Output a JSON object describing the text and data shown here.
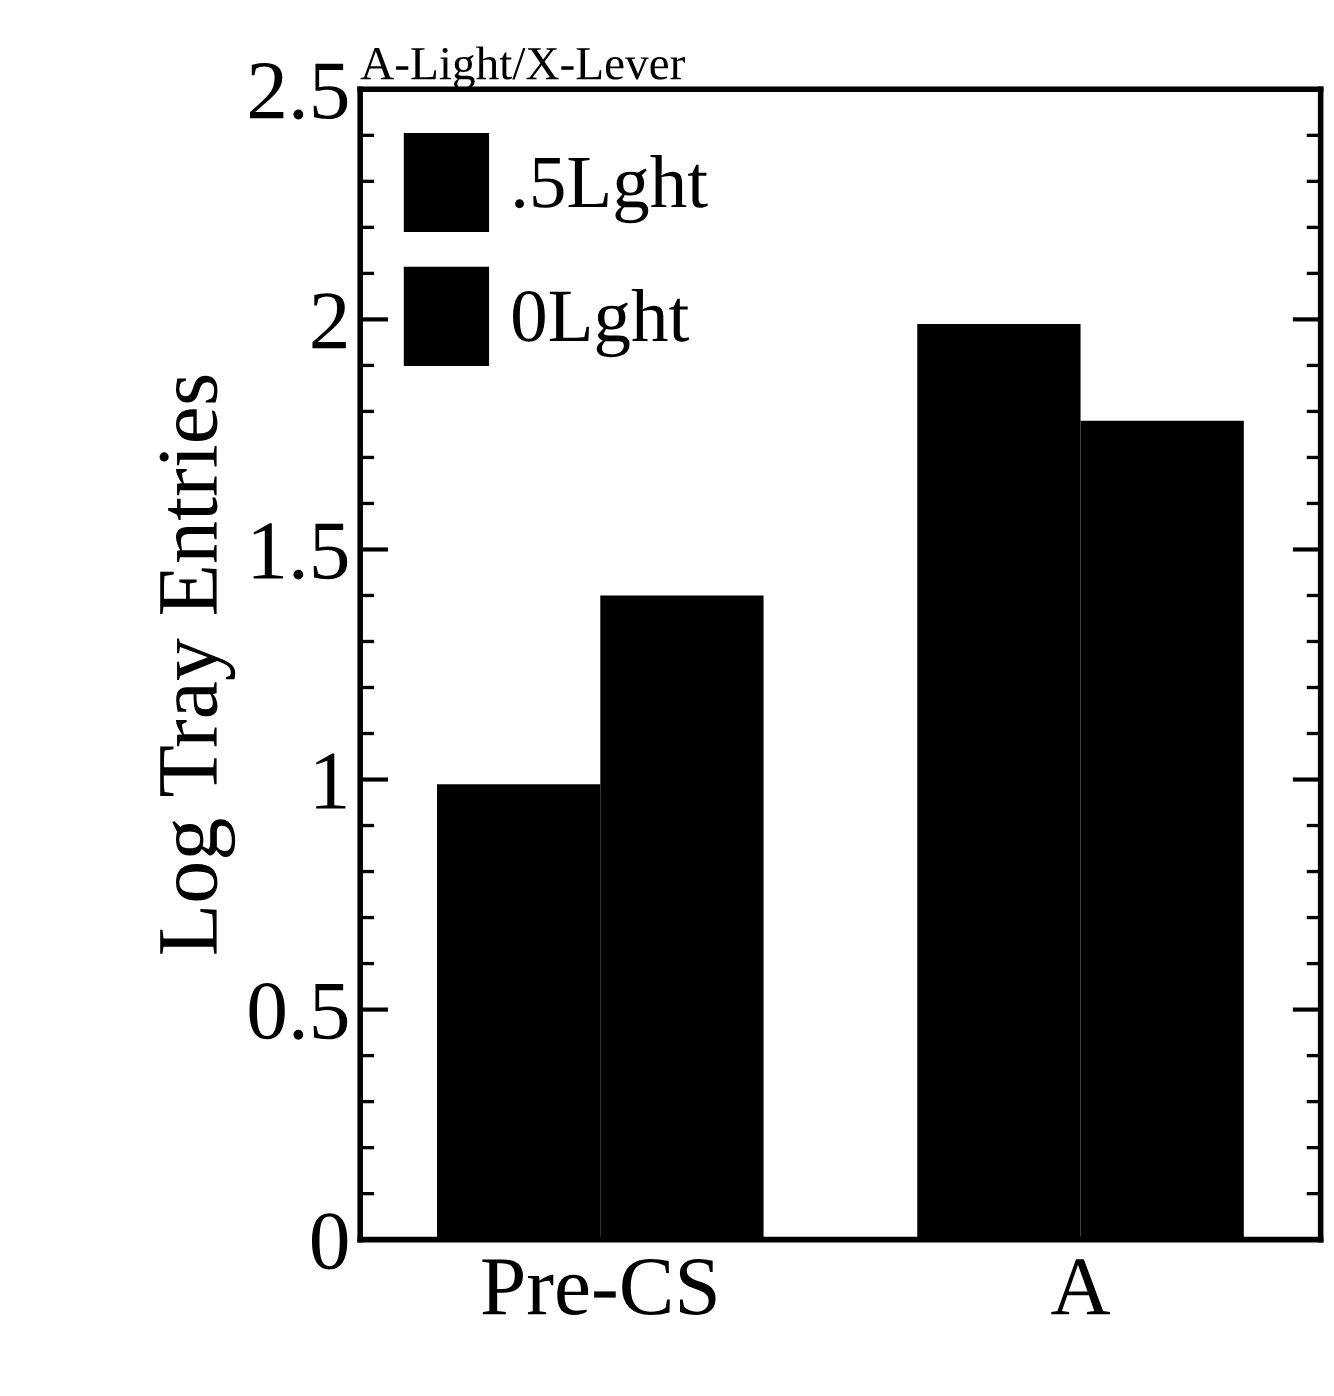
{
  "chart_data": {
    "type": "bar",
    "title": "A-Light/X-Lever",
    "ylabel": "Log Tray Entries",
    "categories": [
      "Pre-CS",
      "A"
    ],
    "series": [
      {
        "name": ".5Lght",
        "color": "#000000",
        "values": [
          0.99,
          1.99
        ]
      },
      {
        "name": "0Lght",
        "color": "#000000",
        "values": [
          1.4,
          1.78
        ]
      }
    ],
    "ylim": [
      0,
      2.5
    ],
    "yticks": [
      0,
      0.5,
      1,
      1.5,
      2,
      2.5
    ],
    "grid": false,
    "legend": "top left"
  }
}
